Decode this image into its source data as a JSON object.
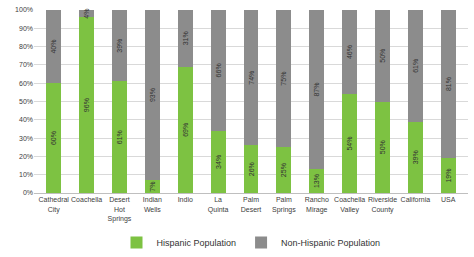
{
  "chart_data": {
    "type": "bar",
    "stacked": true,
    "data_labels": true,
    "grid": true,
    "legend": "bottom",
    "categories": [
      "Cathedral City",
      "Coachella",
      "Desert Hot Springs",
      "Indian Wells",
      "Indio",
      "La Quinta",
      "Palm Desert",
      "Palm Springs",
      "Rancho Mirage",
      "Coachella Valley",
      "Riverside County",
      "California",
      "USA"
    ],
    "series": [
      {
        "name": "Hispanic Population",
        "color": "#7dc242",
        "values": [
          60,
          96,
          61,
          7,
          69,
          34,
          26,
          25,
          13,
          54,
          50,
          39,
          19
        ],
        "value_labels": [
          "60%",
          "96%",
          "61%",
          "7%",
          "69%",
          "34%",
          "26%",
          "25%",
          "13%",
          "54%",
          "50%",
          "39%",
          "19%"
        ]
      },
      {
        "name": "Non-Hispanic Population",
        "color": "#8c8c8c",
        "values": [
          40,
          4,
          39,
          93,
          31,
          66,
          74,
          75,
          87,
          46,
          50,
          61,
          81
        ],
        "value_labels": [
          "40%",
          "4%",
          "39%",
          "93%",
          "31%",
          "66%",
          "74%",
          "75%",
          "87%",
          "46%",
          "50%",
          "61%",
          "81%"
        ]
      }
    ],
    "ylim": [
      0,
      100
    ],
    "yticks": [
      {
        "value": 0,
        "label": "0%"
      },
      {
        "value": 10,
        "label": "10%"
      },
      {
        "value": 20,
        "label": "20%"
      },
      {
        "value": 30,
        "label": "30%"
      },
      {
        "value": 40,
        "label": "40%"
      },
      {
        "value": 50,
        "label": "50%"
      },
      {
        "value": 60,
        "label": "60%"
      },
      {
        "value": 70,
        "label": "70%"
      },
      {
        "value": 80,
        "label": "80%"
      },
      {
        "value": 90,
        "label": "90%"
      },
      {
        "value": 100,
        "label": "100%"
      }
    ]
  }
}
